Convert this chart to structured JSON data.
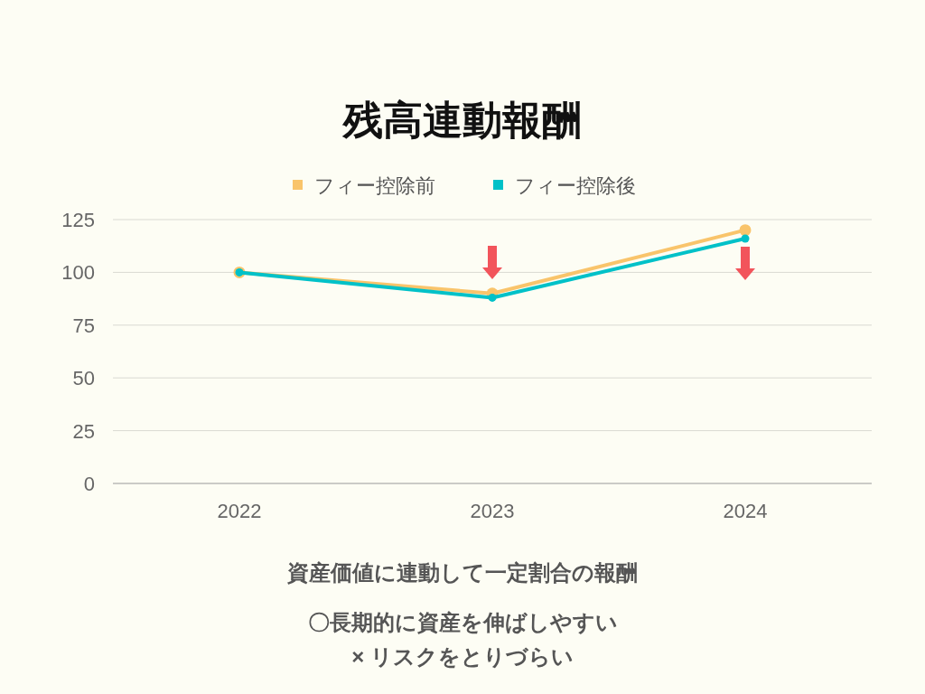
{
  "chart_data": {
    "type": "line",
    "title": "残高連動報酬",
    "categories": [
      "2022",
      "2023",
      "2024"
    ],
    "series": [
      {
        "name": "フィー控除前",
        "color": "#f9c46b",
        "values": [
          100,
          90,
          120
        ]
      },
      {
        "name": "フィー控除後",
        "color": "#00c1c8",
        "values": [
          100,
          88,
          116
        ]
      }
    ],
    "ylim": [
      0,
      125
    ],
    "yticks": [
      0,
      25,
      50,
      75,
      100,
      125
    ],
    "grid": "y",
    "legend": "top",
    "marker": "circle",
    "annotations": [
      "資産価値に連動して一定割合の報酬",
      "〇長期的に資産を伸ばしやすい",
      "× リスクをとりづらい"
    ]
  }
}
